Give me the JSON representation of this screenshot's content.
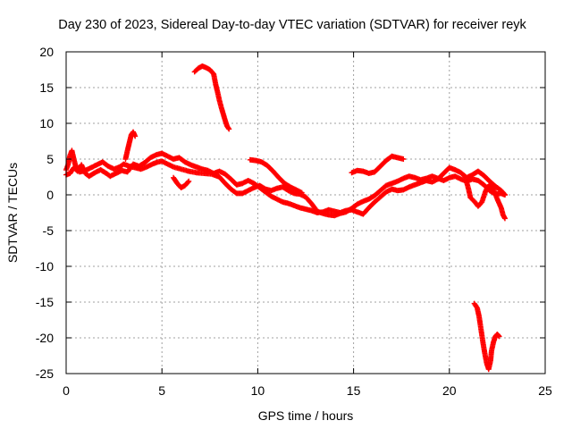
{
  "chart_data": {
    "type": "scatter",
    "title": "Day 230 of 2023, Sidereal Day-to-day VTEC variation (SDTVAR) for receiver reyk",
    "xlabel": "GPS time / hours",
    "ylabel": "SDTVAR / TECUs",
    "xlim": [
      0,
      25
    ],
    "ylim": [
      -25,
      20
    ],
    "xticks": [
      "0",
      "5",
      "10",
      "15",
      "20",
      "25"
    ],
    "yticks": [
      "20",
      "15",
      "10",
      "5",
      "0",
      "-5",
      "-10",
      "-15",
      "-20",
      "-25"
    ],
    "grid": true,
    "marker": "+",
    "series": [
      {
        "name": "reyk",
        "color": "#ff0000",
        "segments": [
          [
            [
              0.0,
              3.5
            ],
            [
              0.1,
              4.2
            ],
            [
              0.2,
              5.5
            ],
            [
              0.3,
              6.2
            ],
            [
              0.4,
              5.0
            ],
            [
              0.5,
              4.0
            ],
            [
              0.7,
              3.2
            ],
            [
              1.0,
              3.4
            ],
            [
              1.3,
              3.8
            ],
            [
              1.6,
              4.2
            ],
            [
              1.9,
              4.6
            ],
            [
              2.2,
              4.0
            ],
            [
              2.5,
              3.6
            ],
            [
              2.8,
              3.9
            ],
            [
              3.0,
              4.3
            ],
            [
              3.3,
              4.0
            ],
            [
              3.6,
              3.8
            ],
            [
              3.9,
              3.6
            ],
            [
              4.2,
              3.9
            ],
            [
              4.5,
              4.3
            ],
            [
              4.8,
              4.6
            ],
            [
              5.0,
              4.7
            ],
            [
              5.3,
              4.3
            ],
            [
              5.6,
              3.9
            ],
            [
              6.0,
              3.6
            ],
            [
              6.4,
              3.3
            ],
            [
              6.8,
              3.1
            ],
            [
              7.2,
              3.0
            ],
            [
              7.6,
              2.9
            ],
            [
              8.0,
              2.5
            ],
            [
              8.3,
              1.6
            ],
            [
              8.6,
              0.8
            ],
            [
              8.9,
              0.2
            ],
            [
              9.2,
              0.2
            ],
            [
              9.5,
              0.6
            ],
            [
              9.8,
              1.0
            ],
            [
              10.1,
              1.3
            ],
            [
              10.4,
              0.8
            ],
            [
              10.7,
              0.6
            ],
            [
              11.0,
              0.9
            ],
            [
              11.3,
              1.1
            ],
            [
              11.6,
              0.6
            ],
            [
              11.9,
              0.2
            ],
            [
              12.2,
              0.1
            ],
            [
              12.5,
              -0.3
            ],
            [
              12.8,
              -1.2
            ],
            [
              13.1,
              -2.3
            ],
            [
              13.4,
              -2.6
            ],
            [
              13.7,
              -2.8
            ],
            [
              14.0,
              -2.9
            ],
            [
              14.3,
              -2.6
            ],
            [
              14.6,
              -2.4
            ],
            [
              14.9,
              -1.9
            ],
            [
              15.2,
              -1.3
            ],
            [
              15.5,
              -0.9
            ],
            [
              15.8,
              -0.6
            ],
            [
              16.1,
              -0.1
            ],
            [
              16.4,
              0.6
            ],
            [
              16.7,
              1.3
            ],
            [
              17.0,
              1.6
            ],
            [
              17.3,
              1.9
            ],
            [
              17.6,
              2.3
            ],
            [
              17.9,
              2.6
            ],
            [
              18.2,
              2.4
            ],
            [
              18.5,
              2.1
            ],
            [
              18.8,
              2.3
            ],
            [
              19.1,
              2.6
            ],
            [
              19.4,
              2.3
            ],
            [
              19.7,
              2.0
            ],
            [
              20.0,
              2.4
            ],
            [
              20.3,
              2.6
            ],
            [
              20.6,
              2.2
            ],
            [
              20.9,
              1.9
            ],
            [
              21.2,
              2.2
            ],
            [
              21.5,
              2.0
            ],
            [
              21.8,
              1.4
            ],
            [
              22.1,
              0.6
            ],
            [
              22.4,
              0.1
            ],
            [
              22.7,
              0.2
            ],
            [
              22.9,
              0.0
            ]
          ],
          [
            [
              0.0,
              2.8
            ],
            [
              0.2,
              3.0
            ],
            [
              0.4,
              3.8
            ],
            [
              0.6,
              3.3
            ],
            [
              0.8,
              4.2
            ],
            [
              1.0,
              3.0
            ],
            [
              1.2,
              2.6
            ],
            [
              1.5,
              3.1
            ],
            [
              1.8,
              3.5
            ],
            [
              2.1,
              3.0
            ],
            [
              2.3,
              2.6
            ],
            [
              2.6,
              3.0
            ],
            [
              2.9,
              3.4
            ],
            [
              3.2,
              3.2
            ],
            [
              3.5,
              4.3
            ],
            [
              3.8,
              4.0
            ],
            [
              4.1,
              4.5
            ],
            [
              4.4,
              5.2
            ],
            [
              4.7,
              5.6
            ],
            [
              5.0,
              5.8
            ],
            [
              5.3,
              5.4
            ],
            [
              5.6,
              5.0
            ],
            [
              5.9,
              5.2
            ],
            [
              6.2,
              4.6
            ],
            [
              6.5,
              4.2
            ],
            [
              6.8,
              3.9
            ],
            [
              7.1,
              3.6
            ],
            [
              7.4,
              3.4
            ],
            [
              7.7,
              3.0
            ],
            [
              8.0,
              3.3
            ],
            [
              8.3,
              2.9
            ],
            [
              8.6,
              2.2
            ],
            [
              8.9,
              1.4
            ],
            [
              9.2,
              1.6
            ],
            [
              9.5,
              2.0
            ],
            [
              9.8,
              1.6
            ],
            [
              10.1,
              1.0
            ],
            [
              10.4,
              0.4
            ],
            [
              10.7,
              -0.2
            ],
            [
              11.0,
              -0.6
            ],
            [
              11.3,
              -1.0
            ],
            [
              11.6,
              -1.2
            ],
            [
              11.9,
              -1.5
            ],
            [
              12.2,
              -1.8
            ],
            [
              12.5,
              -2.0
            ],
            [
              12.8,
              -2.2
            ],
            [
              13.1,
              -2.5
            ],
            [
              13.4,
              -2.4
            ],
            [
              13.7,
              -2.1
            ],
            [
              14.0,
              -2.3
            ],
            [
              14.3,
              -2.5
            ],
            [
              14.6,
              -2.2
            ],
            [
              14.9,
              -2.1
            ],
            [
              15.2,
              -2.4
            ],
            [
              15.5,
              -2.7
            ],
            [
              15.8,
              -1.8
            ],
            [
              16.1,
              -1.0
            ],
            [
              16.4,
              -0.3
            ],
            [
              16.7,
              0.4
            ],
            [
              17.0,
              0.8
            ],
            [
              17.3,
              0.6
            ],
            [
              17.6,
              0.7
            ],
            [
              17.9,
              1.1
            ],
            [
              18.2,
              1.4
            ],
            [
              18.5,
              1.7
            ],
            [
              18.8,
              2.0
            ],
            [
              19.1,
              1.8
            ],
            [
              19.4,
              2.2
            ],
            [
              19.7,
              3.0
            ],
            [
              20.0,
              3.8
            ],
            [
              20.3,
              3.5
            ],
            [
              20.6,
              3.1
            ],
            [
              20.9,
              2.4
            ],
            [
              21.2,
              2.8
            ],
            [
              21.5,
              3.3
            ],
            [
              21.8,
              2.7
            ],
            [
              22.1,
              1.9
            ],
            [
              22.4,
              1.2
            ],
            [
              22.7,
              0.6
            ],
            [
              22.9,
              0.0
            ]
          ],
          [
            [
              3.1,
              5.0
            ],
            [
              3.2,
              6.2
            ],
            [
              3.3,
              7.3
            ],
            [
              3.4,
              8.4
            ],
            [
              3.5,
              8.8
            ],
            [
              3.6,
              8.2
            ]
          ],
          [
            [
              6.7,
              17.2
            ],
            [
              6.9,
              17.7
            ],
            [
              7.1,
              18.0
            ],
            [
              7.3,
              17.8
            ],
            [
              7.5,
              17.5
            ],
            [
              7.7,
              16.9
            ],
            [
              7.8,
              15.5
            ],
            [
              7.9,
              14.4
            ],
            [
              8.0,
              13.2
            ],
            [
              8.1,
              12.2
            ],
            [
              8.2,
              11.3
            ],
            [
              8.3,
              10.4
            ],
            [
              8.4,
              9.6
            ],
            [
              8.5,
              9.2
            ]
          ],
          [
            [
              5.6,
              2.4
            ],
            [
              5.8,
              1.6
            ],
            [
              6.0,
              1.0
            ],
            [
              6.2,
              1.3
            ],
            [
              6.4,
              1.9
            ]
          ],
          [
            [
              9.6,
              4.9
            ],
            [
              9.9,
              4.8
            ],
            [
              10.2,
              4.6
            ],
            [
              10.5,
              4.1
            ],
            [
              10.8,
              3.3
            ],
            [
              11.1,
              2.4
            ],
            [
              11.4,
              1.6
            ],
            [
              11.7,
              1.1
            ],
            [
              12.0,
              0.7
            ],
            [
              12.3,
              0.3
            ]
          ],
          [
            [
              14.9,
              3.1
            ],
            [
              15.2,
              3.4
            ],
            [
              15.5,
              3.3
            ],
            [
              15.8,
              3.0
            ],
            [
              16.1,
              3.2
            ],
            [
              16.4,
              4.0
            ],
            [
              16.7,
              4.8
            ],
            [
              17.0,
              5.4
            ],
            [
              17.3,
              5.2
            ],
            [
              17.6,
              5.0
            ]
          ],
          [
            [
              20.9,
              1.8
            ],
            [
              21.0,
              0.8
            ],
            [
              21.1,
              -0.4
            ],
            [
              21.3,
              -0.9
            ],
            [
              21.5,
              -1.6
            ],
            [
              21.7,
              -1.0
            ],
            [
              21.9,
              0.6
            ],
            [
              22.1,
              1.4
            ],
            [
              22.3,
              0.8
            ],
            [
              22.5,
              -0.6
            ],
            [
              22.7,
              -1.8
            ],
            [
              22.8,
              -2.8
            ],
            [
              22.9,
              -3.3
            ]
          ],
          [
            [
              21.3,
              -15.2
            ],
            [
              21.45,
              -15.8
            ],
            [
              21.55,
              -17.0
            ],
            [
              21.65,
              -18.8
            ],
            [
              21.75,
              -20.6
            ],
            [
              21.85,
              -22.2
            ],
            [
              21.95,
              -23.6
            ],
            [
              22.05,
              -24.4
            ],
            [
              22.15,
              -23.2
            ],
            [
              22.2,
              -21.8
            ],
            [
              22.3,
              -20.6
            ],
            [
              22.4,
              -19.8
            ],
            [
              22.5,
              -19.5
            ],
            [
              22.6,
              -19.8
            ]
          ]
        ]
      }
    ]
  }
}
